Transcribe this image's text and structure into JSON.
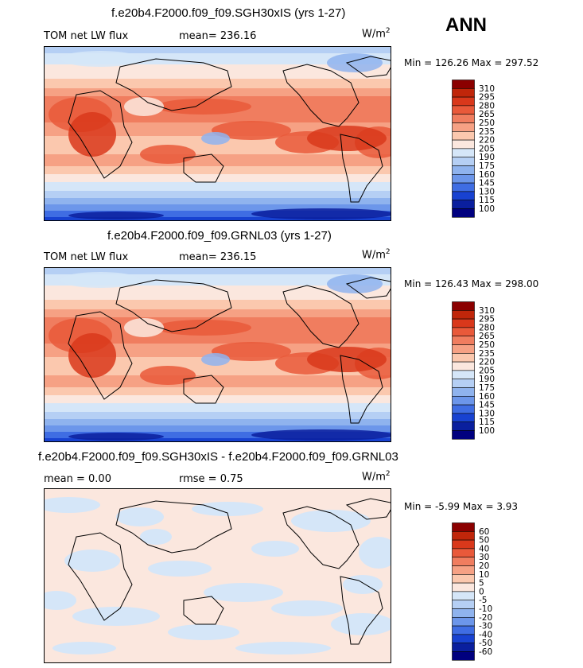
{
  "season": "ANN",
  "panels": [
    {
      "title": "f.e20b4.F2000.f09_f09.SGH30xIS (yrs 1-27)",
      "variable": "TOM net LW flux",
      "stat1": "mean= 236.16",
      "stat2": "",
      "units": "W/m",
      "units_sup": "2",
      "minmax": "Min = 126.26 Max = 297.52",
      "levels": [
        "310",
        "295",
        "280",
        "265",
        "250",
        "235",
        "220",
        "205",
        "190",
        "175",
        "160",
        "145",
        "130",
        "115",
        "100"
      ],
      "colors": [
        "#8b0000",
        "#c0260a",
        "#d9381b",
        "#e9593a",
        "#f07d5f",
        "#f6a184",
        "#fbc8ae",
        "#fbe7de",
        "#d5e6f8",
        "#b5cff4",
        "#8fb3ee",
        "#6c96ea",
        "#3f6de3",
        "#1842d1",
        "#0a1f9e",
        "#00007f"
      ]
    },
    {
      "title": "f.e20b4.F2000.f09_f09.GRNL03 (yrs 1-27)",
      "variable": "TOM net LW flux",
      "stat1": "mean= 236.15",
      "stat2": "",
      "units": "W/m",
      "units_sup": "2",
      "minmax": "Min = 126.43 Max = 298.00",
      "levels": [
        "310",
        "295",
        "280",
        "265",
        "250",
        "235",
        "220",
        "205",
        "190",
        "175",
        "160",
        "145",
        "130",
        "115",
        "100"
      ],
      "colors": [
        "#8b0000",
        "#c0260a",
        "#d9381b",
        "#e9593a",
        "#f07d5f",
        "#f6a184",
        "#fbc8ae",
        "#fbe7de",
        "#d5e6f8",
        "#b5cff4",
        "#8fb3ee",
        "#6c96ea",
        "#3f6de3",
        "#1842d1",
        "#0a1f9e",
        "#00007f"
      ]
    },
    {
      "title": "f.e20b4.F2000.f09_f09.SGH30xIS - f.e20b4.F2000.f09_f09.GRNL03",
      "variable": "",
      "stat1": "mean =   0.00",
      "stat2": "rmse =   0.75",
      "units": "W/m",
      "units_sup": "2",
      "minmax": "Min =  -5.99 Max =   3.93",
      "levels": [
        "60",
        "50",
        "40",
        "30",
        "20",
        "10",
        "5",
        "0",
        "-5",
        "-10",
        "-20",
        "-30",
        "-40",
        "-50",
        "-60"
      ],
      "colors": [
        "#8b0000",
        "#c0260a",
        "#d9381b",
        "#e9593a",
        "#f07d5f",
        "#f6a184",
        "#fbc8ae",
        "#fbe7de",
        "#d5e6f8",
        "#b5cff4",
        "#8fb3ee",
        "#6c96ea",
        "#3f6de3",
        "#1842d1",
        "#0a1f9e",
        "#00007f"
      ]
    }
  ]
}
